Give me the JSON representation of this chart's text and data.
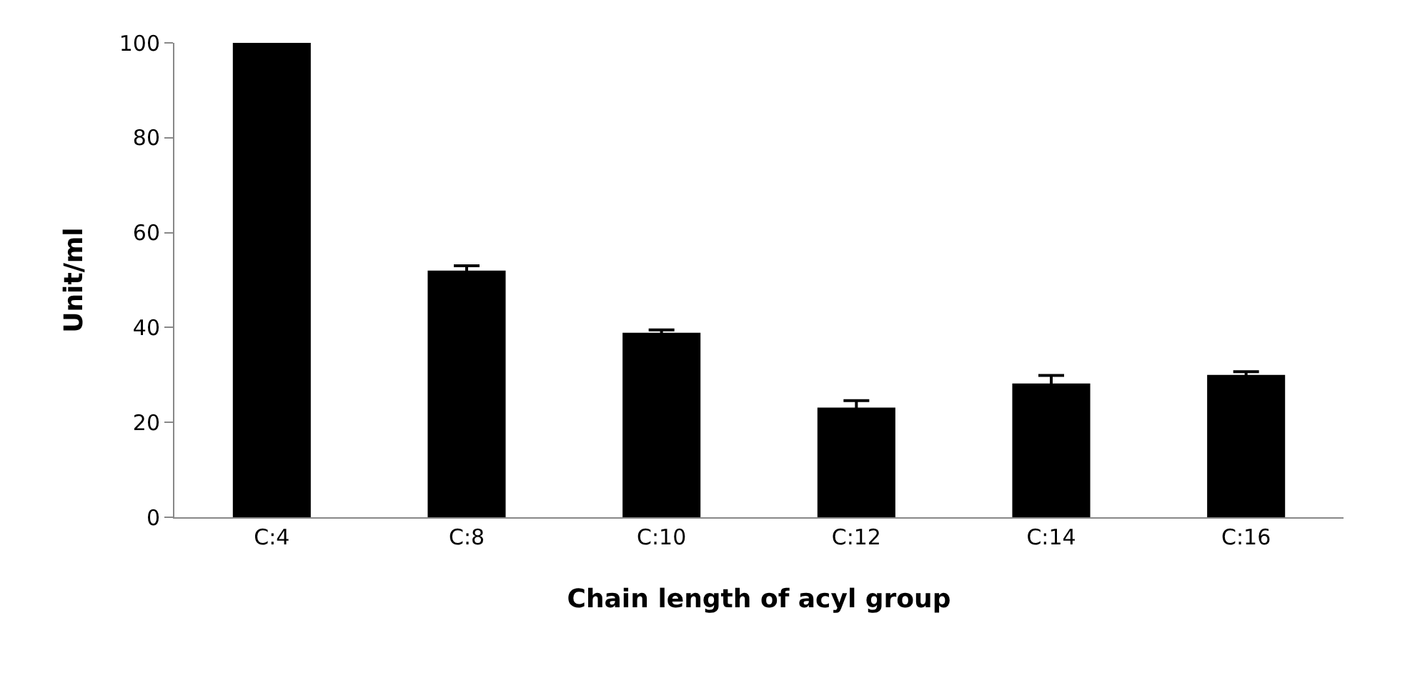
{
  "chart_data": {
    "type": "bar",
    "xlabel": "Chain length of acyl group",
    "ylabel": "Unit/ml",
    "categories": [
      "C:4",
      "C:8",
      "C:10",
      "C:12",
      "C:14",
      "C:16"
    ],
    "values": [
      100,
      52,
      38.9,
      23.1,
      28.2,
      30
    ],
    "errors": [
      null,
      1,
      0.6,
      1.5,
      1.7,
      0.7
    ],
    "color": "#000000",
    "ylim": [
      0,
      100
    ],
    "yticks": [
      0,
      20,
      40,
      60,
      80,
      100
    ],
    "grid": false,
    "legend": false
  }
}
